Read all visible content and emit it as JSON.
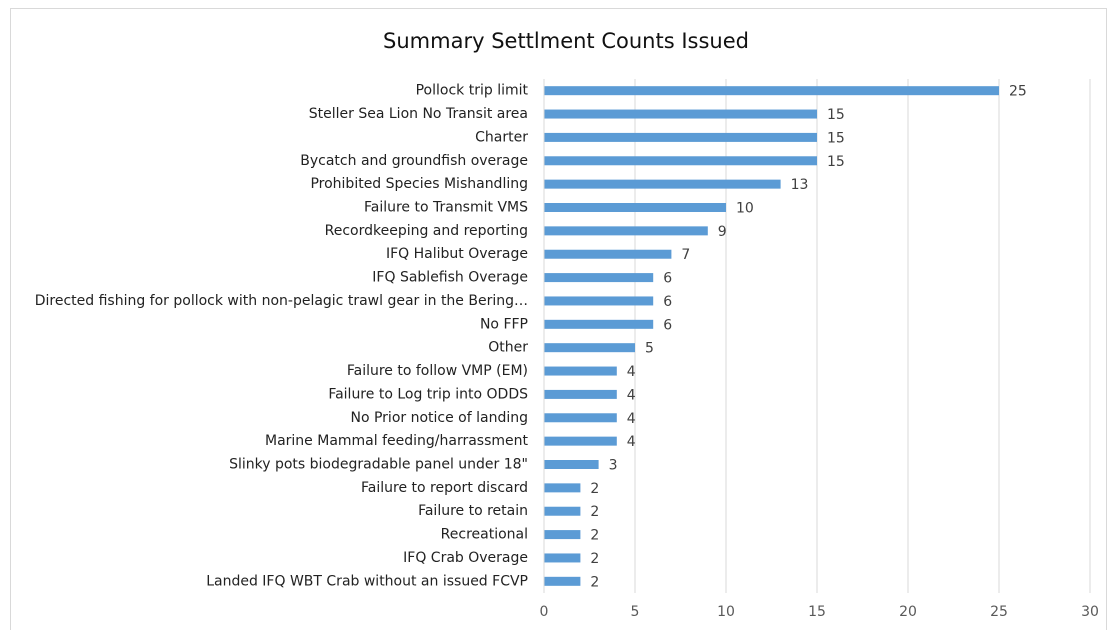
{
  "chart_data": {
    "type": "bar",
    "orientation": "horizontal",
    "title": "Summary Settlment Counts Issued",
    "categories": [
      "Pollock trip limit",
      "Steller Sea Lion No Transit area",
      "Charter",
      "Bycatch and groundfish overage",
      "Prohibited Species Mishandling",
      "Failure to Transmit VMS",
      "Recordkeeping and reporting",
      "IFQ Halibut Overage",
      "IFQ Sablefish Overage",
      "Directed fishing for pollock with non-pelagic trawl gear in the Bering…",
      "No FFP",
      "Other",
      "Failure to follow VMP (EM)",
      "Failure to Log trip into ODDS",
      "No Prior notice of landing",
      "Marine Mammal feeding/harrassment",
      "Slinky pots biodegradable panel under 18\"",
      "Failure to report discard",
      "Failure to retain",
      "Recreational",
      "IFQ Crab Overage",
      "Landed IFQ WBT Crab without an issued FCVP"
    ],
    "values": [
      25,
      15,
      15,
      15,
      13,
      10,
      9,
      7,
      6,
      6,
      6,
      5,
      4,
      4,
      4,
      4,
      3,
      2,
      2,
      2,
      2,
      2
    ],
    "color": "#5b9bd5",
    "xlim": [
      0,
      30
    ],
    "xticks": [
      0,
      5,
      10,
      15,
      20,
      25,
      30
    ],
    "grid": true
  }
}
